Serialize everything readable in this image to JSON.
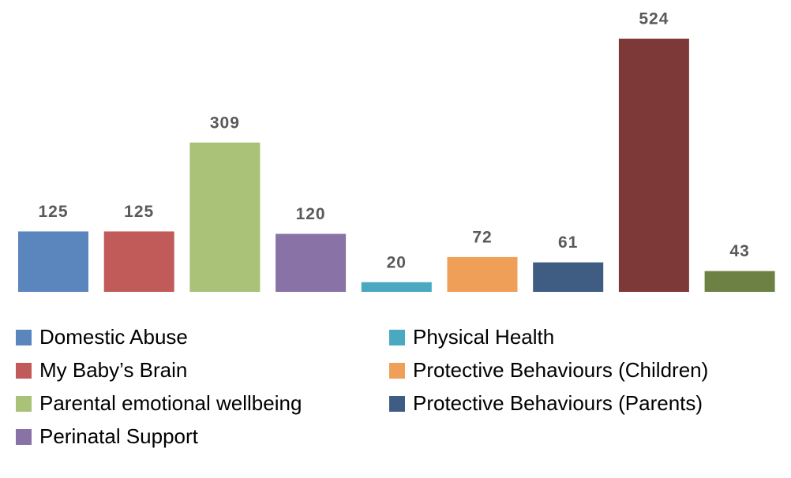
{
  "chart_data": {
    "type": "bar",
    "categories": [
      "Domestic Abuse",
      "My Baby’s Brain",
      "Parental emotional wellbeing",
      "Perinatal Support",
      "Physical Health",
      "Protective Behaviours (Children)",
      "Protective Behaviours (Parents)",
      null,
      null
    ],
    "values": [
      125,
      125,
      309,
      120,
      20,
      72,
      61,
      524,
      43
    ],
    "colors": [
      "#5b86bd",
      "#c15b5a",
      "#a9c277",
      "#8872a6",
      "#4aa8c0",
      "#ef9f58",
      "#3f5d82",
      "#7d3838",
      "#6e8144"
    ],
    "legend": "bottom"
  }
}
